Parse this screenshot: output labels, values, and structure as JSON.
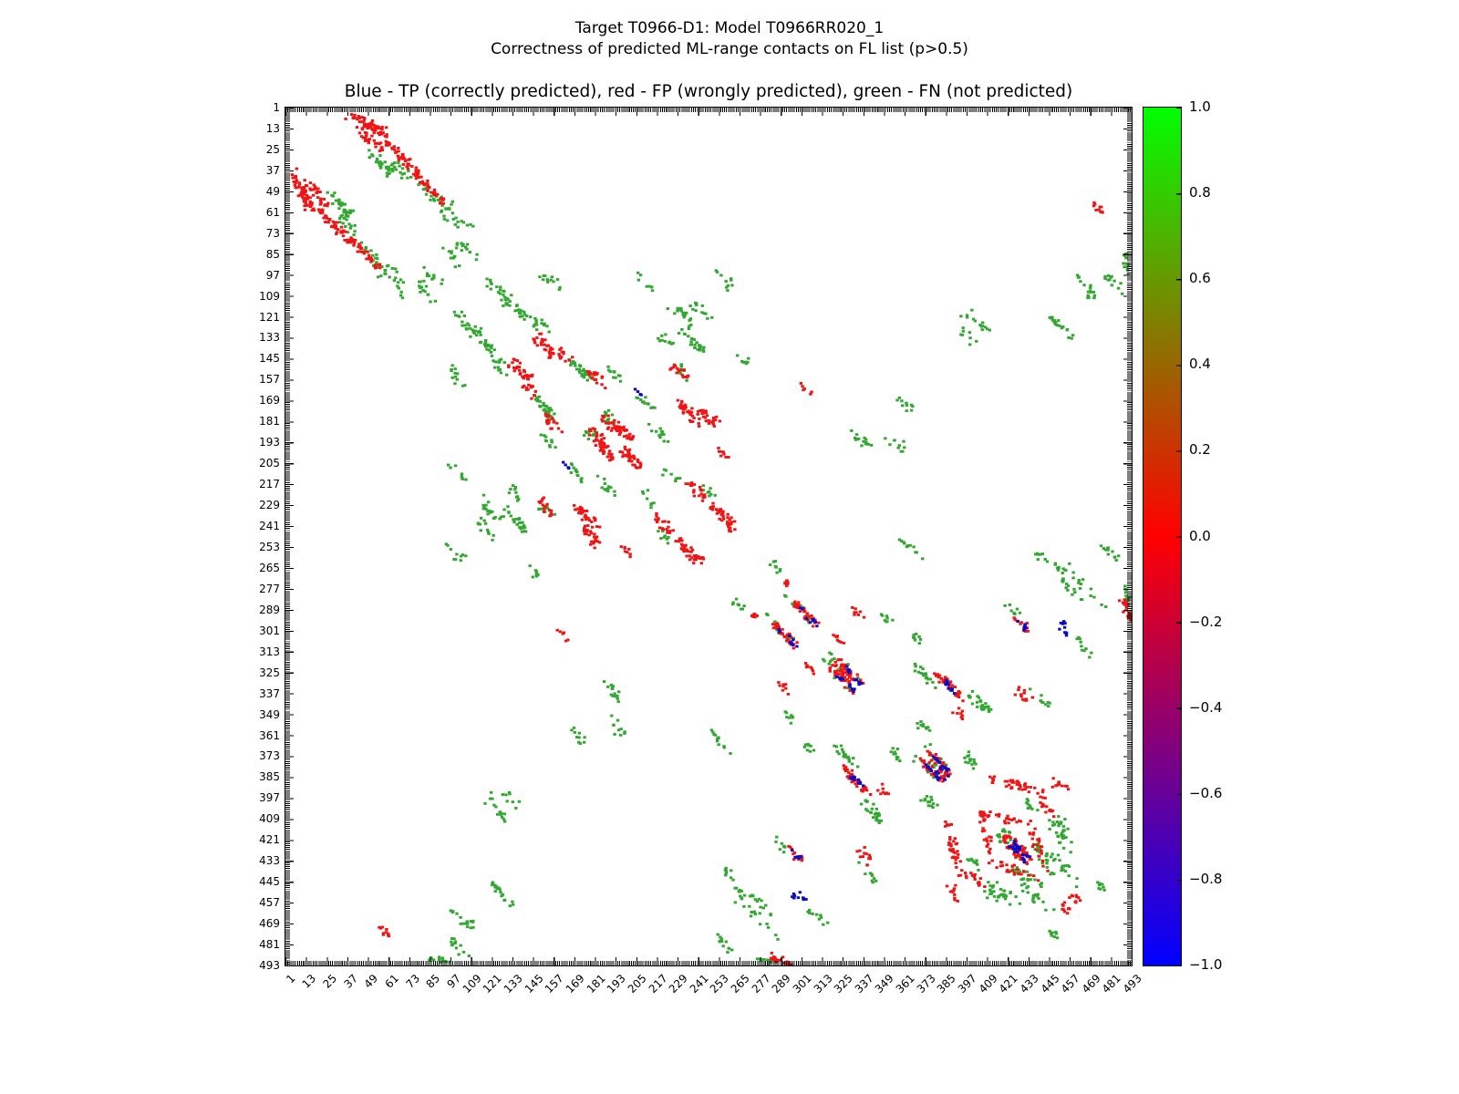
{
  "figure": {
    "suptitle_line1": "Target T0966-D1: Model T0966RR020_1",
    "suptitle_line2": "Correctness of predicted ML-range contacts on FL list (p>0.5)"
  },
  "chart_data": {
    "type": "scatter",
    "title": "Blue - TP (correctly predicted), red - FP (wrongly predicted), green - FN (not predicted)",
    "xlabel": "",
    "ylabel": "",
    "xlim": [
      1,
      493
    ],
    "ylim": [
      1,
      493
    ],
    "y_axis_inverted": true,
    "grid": false,
    "symmetric": true,
    "tick_step": 12,
    "tick_values": [
      1,
      13,
      25,
      37,
      49,
      61,
      73,
      85,
      97,
      109,
      121,
      133,
      145,
      157,
      169,
      181,
      193,
      205,
      217,
      229,
      241,
      253,
      265,
      277,
      289,
      301,
      313,
      325,
      337,
      349,
      361,
      373,
      385,
      397,
      409,
      421,
      433,
      445,
      457,
      469,
      481,
      493
    ],
    "series_legend": [
      {
        "name": "TP",
        "description": "Blue - TP (correctly predicted)"
      },
      {
        "name": "FP",
        "description": "red - FP (wrongly predicted)"
      },
      {
        "name": "FN",
        "description": "green - FN (not predicted)"
      }
    ],
    "colors": {
      "TP": "#0a0ac8",
      "FP": "#f01414",
      "FN": "#32a832"
    },
    "colorbar": {
      "colormap": "brg",
      "min": -1.0,
      "max": 1.0,
      "tick_labels": [
        "1.0",
        "0.8",
        "0.6",
        "0.4",
        "0.2",
        "0.0",
        "−0.2",
        "−0.4",
        "−0.6",
        "−0.8",
        "−1.0"
      ],
      "gradient_bottom_to_top": [
        "#0000ff",
        "#ff0000",
        "#00ff00"
      ]
    },
    "clusters_format": [
      "series",
      "x",
      "y",
      "dx",
      "dy",
      "n_points",
      "jitter"
    ],
    "clusters": [
      [
        "FP",
        38,
        5,
        22,
        11,
        60,
        2.5
      ],
      [
        "FP",
        44,
        14,
        14,
        12,
        28,
        2.5
      ],
      [
        "FP",
        58,
        18,
        34,
        37,
        80,
        2.2
      ],
      [
        "FN",
        50,
        27,
        13,
        12,
        30,
        2.5
      ],
      [
        "FN",
        64,
        34,
        9,
        8,
        16,
        2.5
      ],
      [
        "FN",
        79,
        46,
        18,
        12,
        20,
        3
      ],
      [
        "FN",
        92,
        60,
        16,
        11,
        18,
        3
      ],
      [
        "FN",
        101,
        78,
        11,
        9,
        14,
        2.5
      ],
      [
        "FN",
        84,
        95,
        9,
        8,
        10,
        2.5
      ],
      [
        "FN",
        150,
        96,
        11,
        8,
        12,
        2.5
      ],
      [
        "FN",
        118,
        100,
        13,
        11,
        20,
        2.5
      ],
      [
        "FN",
        129,
        112,
        13,
        11,
        20,
        2.5
      ],
      [
        "FN",
        142,
        120,
        10,
        8,
        15,
        2.5
      ],
      [
        "FP",
        147,
        132,
        9,
        11,
        30,
        2.5
      ],
      [
        "FP",
        160,
        140,
        8,
        7,
        12,
        2.5
      ],
      [
        "FN",
        167,
        146,
        13,
        11,
        35,
        2.5
      ],
      [
        "FP",
        178,
        152,
        9,
        8,
        20,
        2.5
      ],
      [
        "FN",
        188,
        150,
        8,
        6,
        10,
        2.5
      ],
      [
        "FN",
        206,
        166,
        9,
        8,
        12,
        2.5
      ],
      [
        "FP",
        186,
        178,
        9,
        11,
        25,
        2.5
      ],
      [
        "FN",
        176,
        186,
        7,
        8,
        12,
        2.5
      ],
      [
        "FP",
        182,
        192,
        9,
        11,
        30,
        2.5
      ],
      [
        "FP",
        197,
        198,
        9,
        8,
        20,
        2.5
      ],
      [
        "FN",
        214,
        184,
        9,
        8,
        12,
        2.5
      ],
      [
        "FP",
        229,
        170,
        13,
        13,
        35,
        2.5
      ],
      [
        "FN",
        232,
        130,
        11,
        10,
        25,
        2.5
      ],
      [
        "FN",
        238,
        114,
        9,
        8,
        12,
        2.5
      ],
      [
        "FN",
        252,
        96,
        9,
        8,
        10,
        2.5
      ],
      [
        "FP",
        226,
        148,
        10,
        9,
        16,
        2.5
      ],
      [
        "FP",
        216,
        236,
        12,
        10,
        20,
        2.5
      ],
      [
        "FP",
        250,
        229,
        11,
        12,
        30,
        2.5
      ],
      [
        "FP",
        174,
        240,
        9,
        13,
        25,
        2.5
      ],
      [
        "FN",
        114,
        226,
        12,
        12,
        20,
        3
      ],
      [
        "FN",
        131,
        218,
        8,
        7,
        10,
        2.5
      ],
      [
        "FN",
        148,
        228,
        8,
        7,
        10,
        2.5
      ],
      [
        "FP",
        198,
        253,
        6,
        6,
        8,
        2
      ],
      [
        "FN",
        244,
        218,
        7,
        6,
        8,
        2.5
      ],
      [
        "FP",
        300,
        160,
        5,
        4,
        6,
        2
      ],
      [
        "FN",
        332,
        188,
        11,
        10,
        14,
        2.5
      ],
      [
        "FN",
        352,
        190,
        9,
        7,
        10,
        2.5
      ],
      [
        "FN",
        360,
        250,
        10,
        8,
        12,
        2.5
      ],
      [
        "FN",
        396,
        118,
        13,
        9,
        14,
        3
      ],
      [
        "FN",
        443,
        118,
        6,
        6,
        6,
        2.5
      ],
      [
        "FN",
        462,
        96,
        9,
        15,
        16,
        2.5
      ],
      [
        "FP",
        470,
        56,
        7,
        5,
        10,
        2
      ],
      [
        "FN",
        488,
        84,
        4,
        13,
        12,
        1.5
      ],
      [
        "FN",
        476,
        252,
        9,
        8,
        12,
        2.5
      ],
      [
        "FN",
        452,
        262,
        27,
        27,
        18,
        3
      ],
      [
        "FN",
        489,
        276,
        4,
        11,
        10,
        1.5
      ],
      [
        "FN",
        282,
        262,
        7,
        6,
        8,
        2.5
      ],
      [
        "FP",
        290,
        272,
        6,
        5,
        8,
        2
      ],
      [
        "FP",
        296,
        284,
        14,
        14,
        30,
        2
      ],
      [
        "TP",
        298,
        286,
        12,
        12,
        10,
        1.2
      ],
      [
        "FN",
        293,
        281,
        15,
        15,
        12,
        3
      ],
      [
        "TP",
        424,
        295,
        9,
        6,
        8,
        1.5
      ],
      [
        "FP",
        424,
        294,
        10,
        7,
        10,
        2
      ],
      [
        "TP",
        452,
        296,
        6,
        4,
        5,
        1.2
      ],
      [
        "FP",
        318,
        302,
        7,
        5,
        8,
        2
      ],
      [
        "FN",
        365,
        300,
        6,
        8,
        8,
        2.5
      ],
      [
        "FN",
        346,
        290,
        8,
        8,
        8,
        2.5
      ],
      [
        "FP",
        330,
        288,
        7,
        5,
        8,
        2
      ],
      [
        "FP",
        322,
        318,
        14,
        14,
        30,
        2
      ],
      [
        "TP",
        326,
        322,
        10,
        10,
        10,
        1.2
      ],
      [
        "FN",
        319,
        315,
        15,
        15,
        10,
        3
      ],
      [
        "FN",
        368,
        322,
        11,
        11,
        20,
        2.5
      ],
      [
        "FP",
        380,
        326,
        14,
        14,
        35,
        2
      ],
      [
        "TP",
        384,
        330,
        10,
        10,
        12,
        1.2
      ],
      [
        "FN",
        398,
        336,
        13,
        13,
        25,
        2.5
      ],
      [
        "FP",
        426,
        335,
        9,
        7,
        12,
        2.5
      ],
      [
        "FN",
        436,
        336,
        8,
        7,
        10,
        2.5
      ],
      [
        "FN",
        420,
        286,
        8,
        6,
        8,
        2.5
      ],
      [
        "FP",
        374,
        370,
        14,
        14,
        35,
        2
      ],
      [
        "TP",
        378,
        374,
        10,
        10,
        14,
        1.2
      ],
      [
        "FN",
        371,
        367,
        13,
        13,
        10,
        3
      ],
      [
        "FN",
        396,
        372,
        8,
        8,
        14,
        2.5
      ],
      [
        "FP",
        346,
        390,
        6,
        6,
        8,
        2
      ],
      [
        "FN",
        352,
        368,
        8,
        8,
        10,
        2.5
      ],
      [
        "FP",
        410,
        386,
        31,
        7,
        40,
        2.5
      ],
      [
        "FP",
        446,
        388,
        11,
        6,
        12,
        2.5
      ],
      [
        "FP",
        406,
        404,
        5,
        24,
        25,
        2.5
      ],
      [
        "FN",
        450,
        408,
        8,
        21,
        20,
        3
      ],
      [
        "FP",
        412,
        434,
        27,
        8,
        25,
        2.5
      ],
      [
        "FN",
        420,
        438,
        21,
        8,
        15,
        3
      ],
      [
        "FN",
        428,
        398,
        11,
        6,
        10,
        2.5
      ],
      [
        "FP",
        420,
        418,
        14,
        14,
        30,
        2
      ],
      [
        "TP",
        424,
        422,
        10,
        10,
        12,
        1.2
      ],
      [
        "FN",
        417,
        415,
        14,
        14,
        12,
        3
      ],
      [
        "FN",
        438,
        424,
        13,
        10,
        15,
        2.5
      ],
      [
        "FN",
        452,
        436,
        11,
        10,
        12,
        2.5
      ],
      [
        "FP",
        396,
        440,
        11,
        7,
        15,
        2.5
      ],
      [
        "FN",
        412,
        446,
        11,
        8,
        12,
        2.5
      ],
      [
        "FP",
        456,
        452,
        8,
        5,
        10,
        2
      ],
      [
        "FN",
        470,
        444,
        7,
        6,
        8,
        2.5
      ],
      [
        "FN",
        256,
        438,
        11,
        13,
        14,
        2.5
      ],
      [
        "FN",
        270,
        452,
        13,
        12,
        14,
        2.5
      ],
      [
        "TP",
        300,
        452,
        5,
        4,
        5,
        1.2
      ],
      [
        "FN",
        306,
        462,
        11,
        8,
        10,
        2.5
      ],
      [
        "FP",
        282,
        487,
        13,
        5,
        20,
        1.8
      ],
      [
        "FN",
        95,
        477,
        11,
        9,
        12,
        2.5
      ],
      [
        "FN",
        120,
        446,
        13,
        12,
        14,
        2.5
      ],
      [
        "FN",
        166,
        358,
        9,
        8,
        10,
        2.5
      ],
      [
        "FN",
        128,
        394,
        9,
        7,
        8,
        2.5
      ],
      [
        "FN",
        206,
        98,
        8,
        7,
        8,
        2.5
      ],
      [
        "FN",
        263,
        143,
        7,
        6,
        8,
        2.5
      ],
      [
        "FP",
        236,
        255,
        7,
        6,
        10,
        2
      ],
      [
        "FN",
        222,
        210,
        7,
        6,
        8,
        2.5
      ],
      [
        "TP",
        162,
        205,
        5,
        3,
        4,
        1
      ]
    ]
  }
}
